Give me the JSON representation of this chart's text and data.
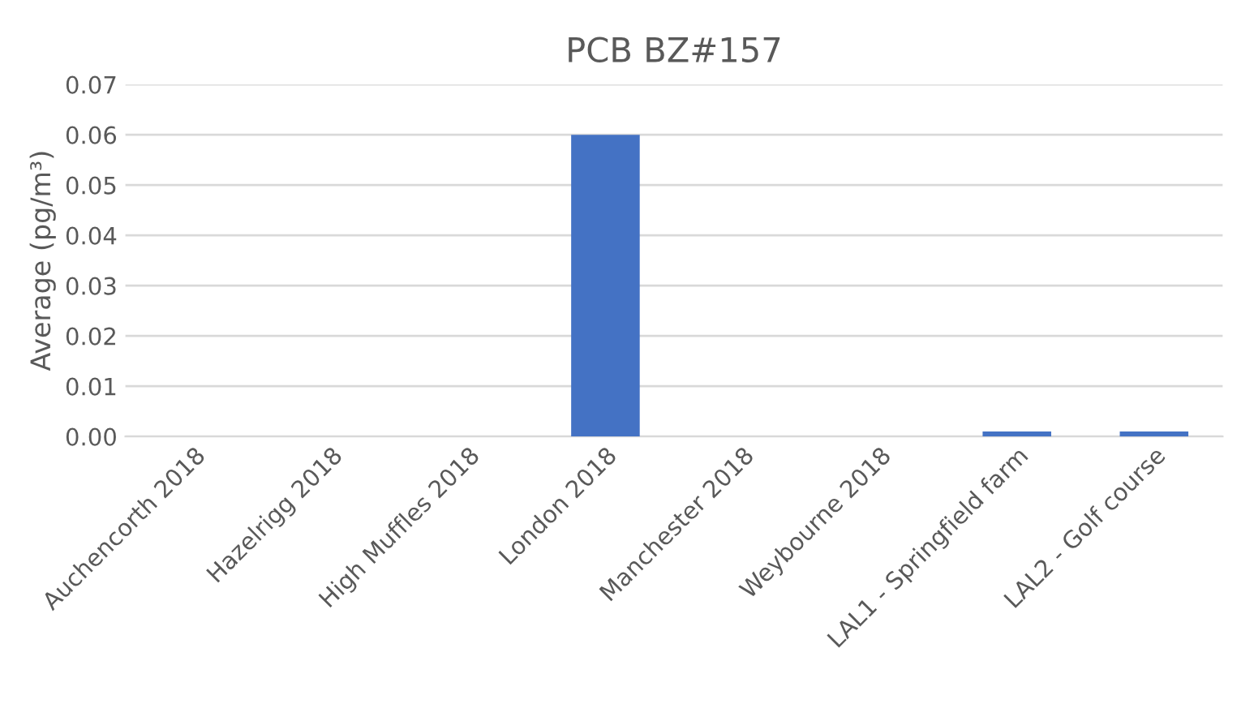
{
  "chart_data": {
    "type": "bar",
    "title": "PCB BZ#157",
    "ylabel": "Average (pg/m³)",
    "categories": [
      "Auchencorth 2018",
      "Hazelrigg 2018",
      "High Muffles 2018",
      "London 2018",
      "Manchester 2018",
      "Weybourne 2018",
      "LAL1 - Springfield farm",
      "LAL2 - Golf course"
    ],
    "values": [
      0,
      0,
      0,
      0.06,
      0,
      0,
      0.001,
      0.001
    ],
    "color": "#4472c4",
    "ylim": [
      0,
      0.07
    ],
    "yticks": [
      {
        "value": 0,
        "label": "0.00"
      },
      {
        "value": 0.01,
        "label": "0.01"
      },
      {
        "value": 0.02,
        "label": "0.02"
      },
      {
        "value": 0.03,
        "label": "0.03"
      },
      {
        "value": 0.04,
        "label": "0.04"
      },
      {
        "value": 0.05,
        "label": "0.05"
      },
      {
        "value": 0.06,
        "label": "0.06"
      },
      {
        "value": 0.07,
        "label": "0.07"
      }
    ],
    "grid": "y"
  }
}
